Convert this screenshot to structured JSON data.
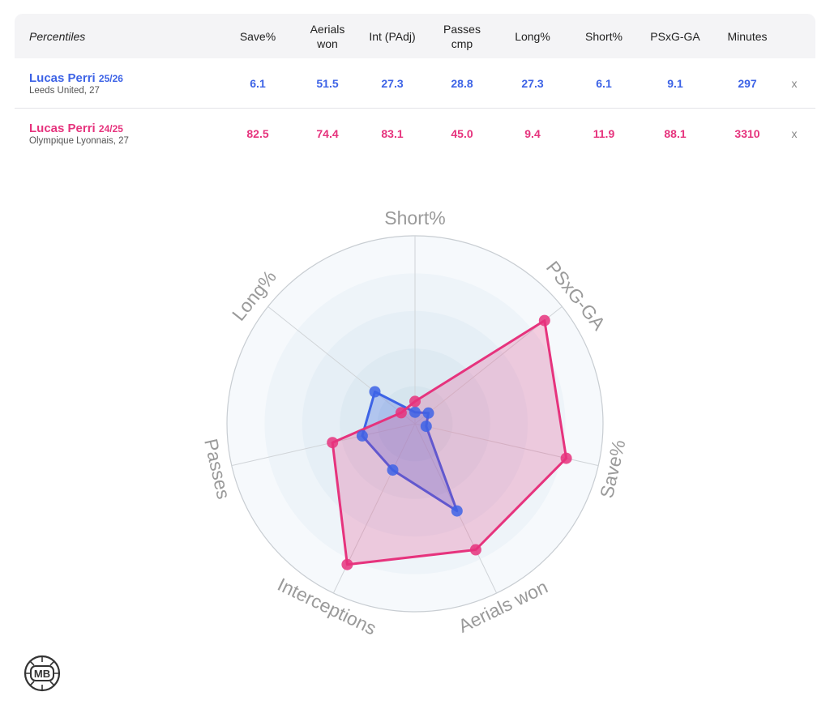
{
  "table": {
    "header_label": "Percentiles",
    "columns": [
      "Save%",
      "Aerials\nwon",
      "Int (PAdj)",
      "Passes\ncmp",
      "Long%",
      "Short%",
      "PSxG-GA",
      "Minutes"
    ],
    "remove_label": "x",
    "rows": [
      {
        "name": "Lucas Perri",
        "season": "25/26",
        "team": "Leeds United, 27",
        "values": [
          "6.1",
          "51.5",
          "27.3",
          "28.8",
          "27.3",
          "6.1",
          "9.1",
          "297"
        ]
      },
      {
        "name": "Lucas Perri",
        "season": "24/25",
        "team": "Olympique Lyonnais, 27",
        "values": [
          "82.5",
          "74.4",
          "83.1",
          "45.0",
          "9.4",
          "11.9",
          "88.1",
          "3310"
        ]
      }
    ]
  },
  "colors": {
    "blue": "#3d63e6",
    "pink": "#e6337d"
  },
  "chart_data": {
    "type": "radar",
    "axes": [
      "Short%",
      "PSxG-GA",
      "Save%",
      "Aerials won",
      "Interceptions",
      "Passes",
      "Long%"
    ],
    "range": [
      0,
      100
    ],
    "series": [
      {
        "name": "Lucas Perri 25/26",
        "color": "#3d63e6",
        "values": [
          6.1,
          9.1,
          6.1,
          51.5,
          27.3,
          28.8,
          27.3
        ]
      },
      {
        "name": "Lucas Perri 24/25",
        "color": "#e6337d",
        "values": [
          11.9,
          88.1,
          82.5,
          74.4,
          83.1,
          45.0,
          9.4
        ]
      }
    ]
  },
  "logo_icon": "mb-ball-logo",
  "logo_text": "MB"
}
